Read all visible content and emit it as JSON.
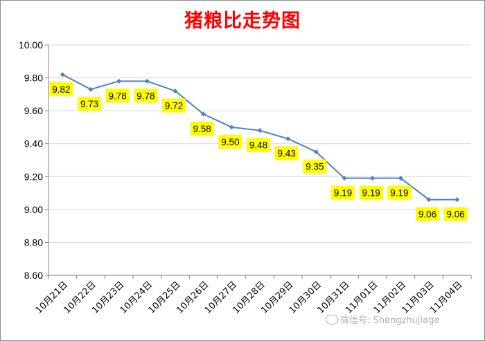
{
  "chart_data": {
    "type": "line",
    "title": "猪粮比走势图",
    "categories": [
      "10月21日",
      "10月22日",
      "10月23日",
      "10月24日",
      "10月25日",
      "10月26日",
      "10月27日",
      "10月28日",
      "10月29日",
      "10月30日",
      "10月31日",
      "11月01日",
      "11月02日",
      "11月03日",
      "11月04日"
    ],
    "series": [
      {
        "values": [
          9.82,
          9.73,
          9.78,
          9.78,
          9.72,
          9.58,
          9.5,
          9.48,
          9.43,
          9.35,
          9.19,
          9.19,
          9.19,
          9.06,
          9.06
        ]
      }
    ],
    "data_labels": [
      "9.82",
      "9.73",
      "9.78",
      "9.78",
      "9.72",
      "9.58",
      "9.50",
      "9.48",
      "9.43",
      "9.35",
      "9.19",
      "9.19",
      "9.19",
      "9.06",
      "9.06"
    ],
    "yticks": [
      "10.00",
      "9.80",
      "9.60",
      "9.40",
      "9.20",
      "9.00",
      "8.80",
      "8.60"
    ],
    "ylim": [
      8.6,
      10.0
    ],
    "xlabel": "",
    "ylabel": "",
    "grid": true,
    "legend": "none",
    "colors": {
      "line": "#4f81bd",
      "label_bg": "#ffff00",
      "title": "#ff0000",
      "grid": "#d9d9d9"
    }
  },
  "watermark": "微信号: Shengzhujiage"
}
